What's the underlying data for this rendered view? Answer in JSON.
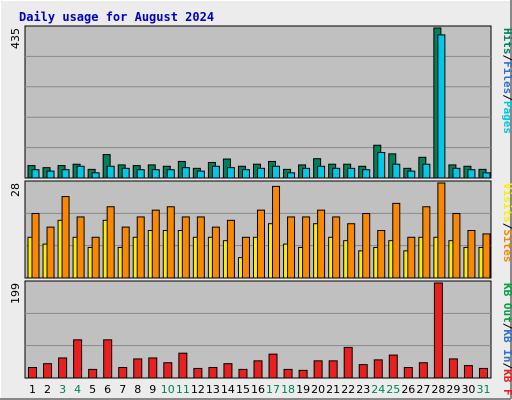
{
  "title": "Daily usage for August 2024",
  "colors": {
    "background": "#ececec",
    "plot_bg": "#c0c0c0",
    "grid": "#8a8a8a",
    "title": "#0000c8",
    "hits": "#00805c",
    "files": "#00c8e8",
    "pages": "#00c8e8",
    "visits": "#f8f000",
    "sites": "#f88800",
    "kb_in": "#3070c8",
    "kb_out": "#00a040",
    "kb_f": "#e82020",
    "weekend": "#00805c",
    "weekday": "#000000"
  },
  "chart_data": [
    {
      "type": "bar",
      "panel": "hits-files-pages",
      "ymax_label": "435",
      "ylim": [
        0,
        435
      ],
      "legend": [
        "Pages",
        "/",
        "Files",
        "/",
        "Hits"
      ],
      "categories": [
        "1",
        "2",
        "3",
        "4",
        "5",
        "6",
        "7",
        "8",
        "9",
        "10",
        "11",
        "12",
        "13",
        "14",
        "15",
        "16",
        "17",
        "18",
        "19",
        "20",
        "21",
        "22",
        "23",
        "24",
        "25",
        "26",
        "27",
        "28",
        "29",
        "30",
        "31"
      ],
      "series": [
        {
          "name": "Hits",
          "values": [
            36,
            30,
            36,
            40,
            25,
            68,
            38,
            36,
            38,
            34,
            48,
            28,
            45,
            55,
            34,
            40,
            48,
            25,
            38,
            56,
            40,
            40,
            34,
            95,
            70,
            28,
            60,
            435,
            38,
            34,
            25
          ]
        },
        {
          "name": "Files",
          "values": [
            24,
            20,
            24,
            34,
            15,
            34,
            28,
            24,
            24,
            24,
            30,
            20,
            34,
            30,
            24,
            28,
            34,
            15,
            28,
            34,
            28,
            28,
            24,
            74,
            40,
            20,
            40,
            415,
            28,
            24,
            15
          ]
        }
      ]
    },
    {
      "type": "bar",
      "panel": "visits-sites",
      "ymax_label": "28",
      "ylim": [
        0,
        28
      ],
      "legend": [
        "Sites",
        "/",
        "Visits"
      ],
      "categories": [
        "1",
        "2",
        "3",
        "4",
        "5",
        "6",
        "7",
        "8",
        "9",
        "10",
        "11",
        "12",
        "13",
        "14",
        "15",
        "16",
        "17",
        "18",
        "19",
        "20",
        "21",
        "22",
        "23",
        "24",
        "25",
        "26",
        "27",
        "28",
        "29",
        "30",
        "31"
      ],
      "series": [
        {
          "name": "Visits",
          "values": [
            12,
            10,
            17,
            12,
            9,
            17,
            9,
            12,
            14,
            14,
            14,
            12,
            12,
            11,
            6,
            12,
            16,
            10,
            9,
            16,
            12,
            11,
            8,
            9,
            11,
            8,
            12,
            12,
            11,
            9,
            9
          ]
        },
        {
          "name": "Sites",
          "values": [
            19,
            15,
            24,
            18,
            12,
            21,
            15,
            18,
            20,
            21,
            18,
            18,
            15,
            17,
            12,
            20,
            27,
            18,
            18,
            20,
            18,
            16,
            19,
            14,
            22,
            12,
            21,
            28,
            19,
            14,
            13
          ]
        }
      ]
    },
    {
      "type": "bar",
      "panel": "kbf-kbin-kbout",
      "ymax_label": "199",
      "ylim": [
        0,
        199
      ],
      "legend": [
        "KB F",
        "/",
        "KB In",
        "/",
        "KB Out"
      ],
      "categories": [
        "1",
        "2",
        "3",
        "4",
        "5",
        "6",
        "7",
        "8",
        "9",
        "10",
        "11",
        "12",
        "13",
        "14",
        "15",
        "16",
        "17",
        "18",
        "19",
        "20",
        "21",
        "22",
        "23",
        "24",
        "25",
        "26",
        "27",
        "28",
        "29",
        "30",
        "31"
      ],
      "series": [
        {
          "name": "KB F",
          "values": [
            22,
            30,
            42,
            80,
            18,
            80,
            22,
            40,
            42,
            32,
            52,
            20,
            22,
            30,
            18,
            36,
            50,
            18,
            16,
            36,
            36,
            64,
            28,
            38,
            48,
            22,
            32,
            199,
            40,
            26,
            20
          ]
        }
      ]
    }
  ],
  "weekend_days": [
    "3",
    "4",
    "10",
    "11",
    "17",
    "18",
    "24",
    "25",
    "31"
  ]
}
